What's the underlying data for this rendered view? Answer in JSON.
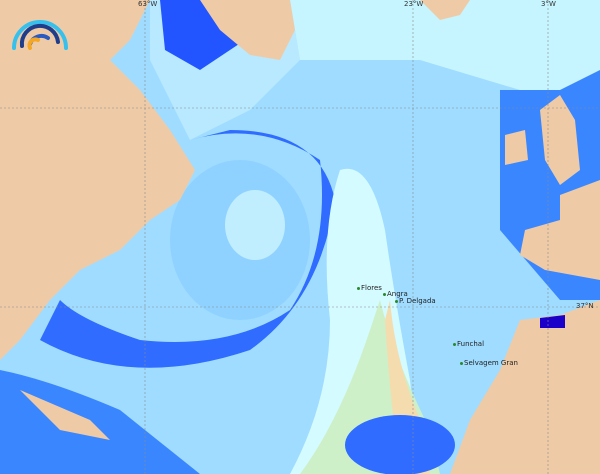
{
  "map": {
    "longitude_labels": [
      "63°W",
      "23°W",
      "3°W"
    ],
    "latitude_labels": [
      "37°N"
    ],
    "places": [
      {
        "name": "Flores"
      },
      {
        "name": "Angra"
      },
      {
        "name": "P. Delgada"
      },
      {
        "name": "Funchal"
      },
      {
        "name": "Selvagem Gran"
      }
    ],
    "colors": {
      "land": "#eecba6",
      "deep_blue": "#1f4fff",
      "mid_blue": "#3a86ff",
      "light_blue": "#6ec3ff",
      "pale_blue": "#b8e9ff",
      "very_pale": "#d4fbff",
      "warm_band": "#f4dcae",
      "green_band": "#cdf0c8",
      "dark_coast": "#1a00c8"
    },
    "logo": {
      "icon": "rainbow-arc-logo"
    }
  }
}
